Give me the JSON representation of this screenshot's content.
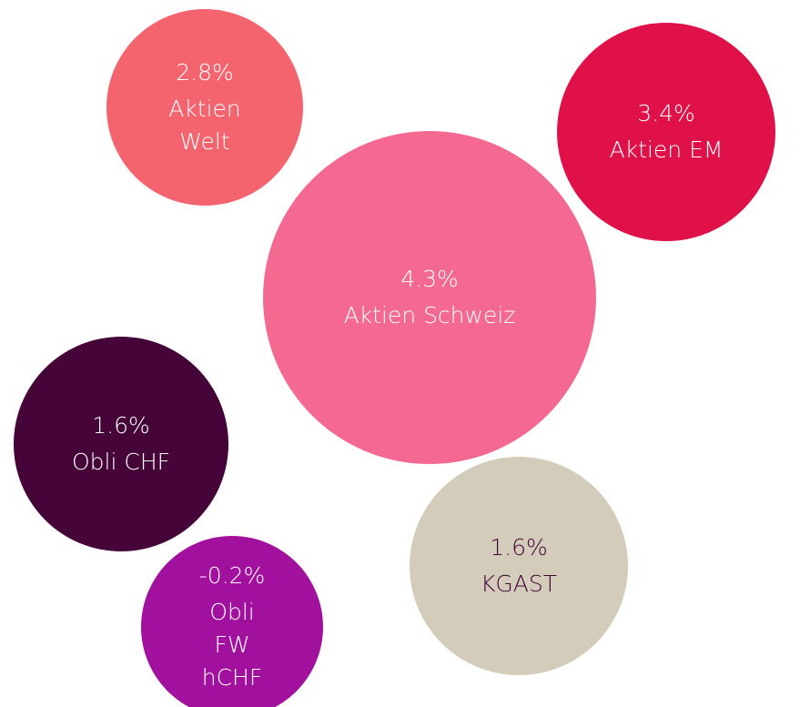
{
  "chart_data": {
    "type": "bubble",
    "categories": [
      "Aktien Welt",
      "Aktien EM",
      "Aktien Schweiz",
      "Obli CHF",
      "KGAST",
      "Obli FW hCHF"
    ],
    "values": [
      2.8,
      3.4,
      4.3,
      1.6,
      1.6,
      -0.2
    ],
    "value_labels": [
      "2.8%",
      "3.4%",
      "4.3%",
      "1.6%",
      "1.6%",
      "-0.2%"
    ],
    "colors": [
      "#f4646e",
      "#e01048",
      "#f46991",
      "#450538",
      "#d4ccba",
      "#a2109e"
    ],
    "text_colors": [
      "#ffffff",
      "#ffffff",
      "#ffffff",
      "#ffffff",
      "#450538",
      "#ffffff"
    ]
  }
}
